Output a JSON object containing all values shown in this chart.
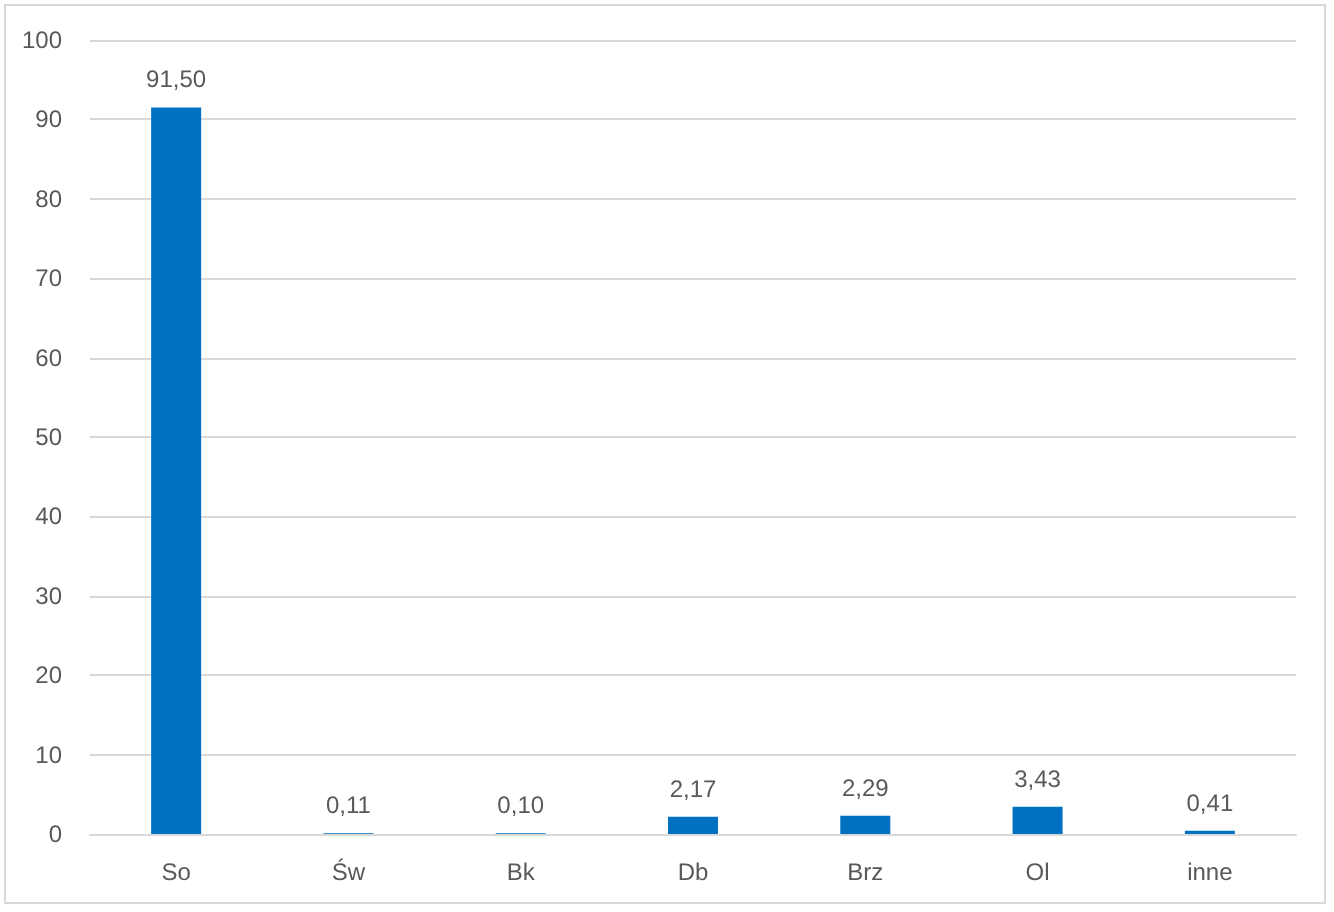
{
  "chart_data": {
    "type": "bar",
    "categories": [
      "So",
      "Św",
      "Bk",
      "Db",
      "Brz",
      "Ol",
      "inne"
    ],
    "values": [
      91.5,
      0.11,
      0.1,
      2.17,
      2.29,
      3.43,
      0.41
    ],
    "value_labels": [
      "91,50",
      "0,11",
      "0,10",
      "2,17",
      "2,29",
      "3,43",
      "0,41"
    ],
    "color": "#0070c0",
    "ylim": [
      0,
      100
    ],
    "yticks": [
      0,
      10,
      20,
      30,
      40,
      50,
      60,
      70,
      80,
      90,
      100
    ],
    "grid": "y"
  }
}
